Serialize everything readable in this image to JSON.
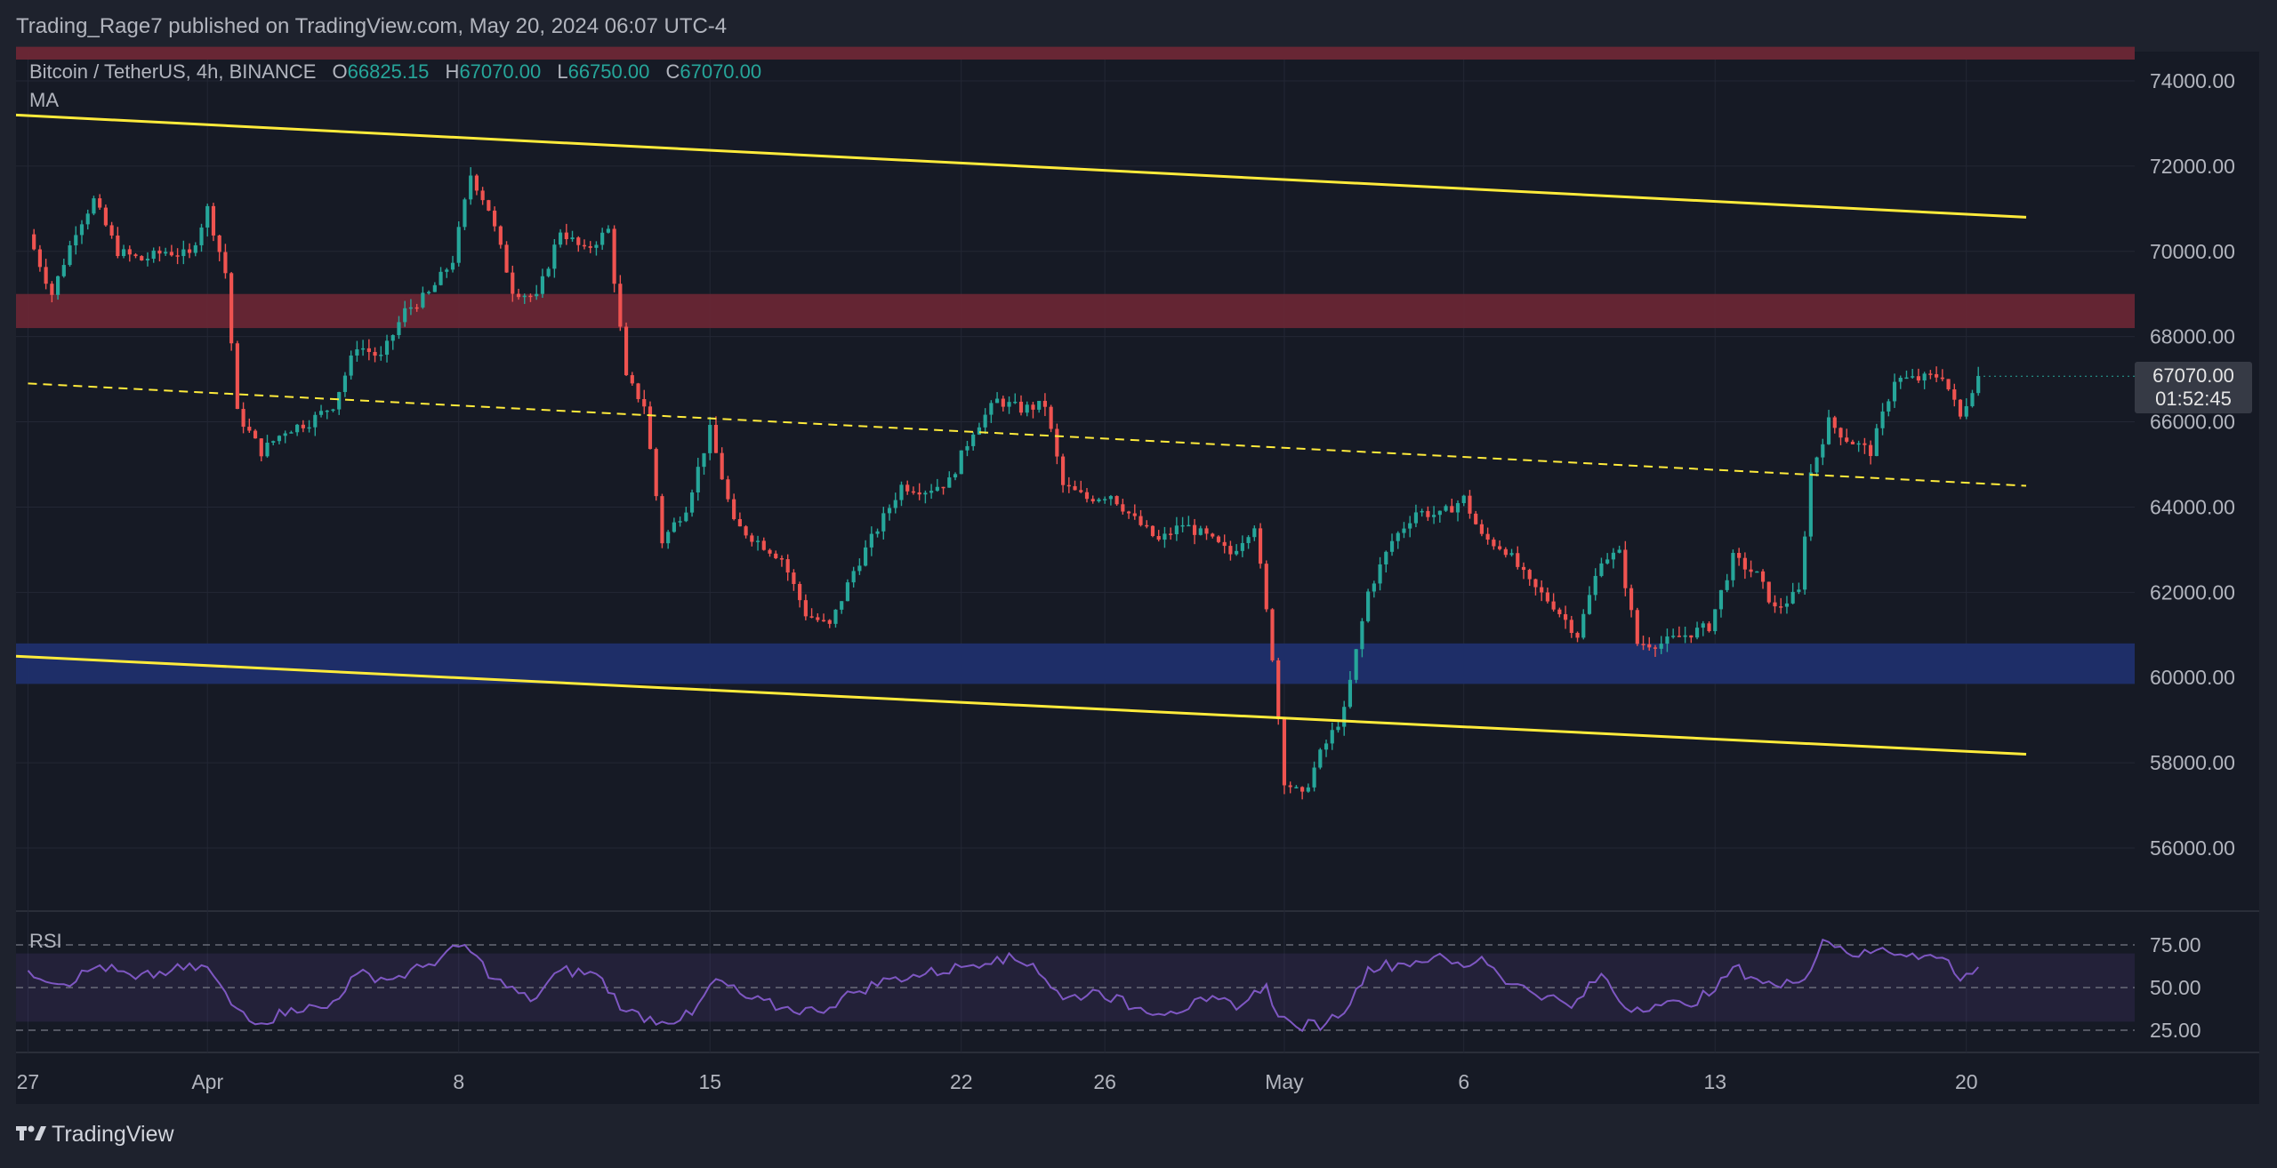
{
  "header": {
    "published": "Trading_Rage7 published on TradingView.com, May 20, 2024 06:07 UTC-4"
  },
  "legend": {
    "symbol": "Bitcoin / TetherUS, 4h, BINANCE",
    "o_label": "O",
    "o_value": "66825.15",
    "h_label": "H",
    "h_value": "67070.00",
    "l_label": "L",
    "l_value": "66750.00",
    "c_label": "C",
    "c_value": "67070.00",
    "ma": "MA"
  },
  "price_tag": {
    "price": "67070.00",
    "countdown": "01:52:45"
  },
  "rsi_panel": {
    "label": "RSI",
    "ticks": [
      "75.00",
      "50.00",
      "25.00"
    ]
  },
  "branding": {
    "text": "TradingView"
  },
  "colors": {
    "background": "#1e222d",
    "pane": "#161a25",
    "up": "#26a69a",
    "down": "#ef5350",
    "channel": "#ffeb3b",
    "resistance_zone": "#6d2735",
    "support_zone": "#1f2f6b",
    "rsi_line": "#7e57c2",
    "text": "#b2b5be"
  },
  "chart_data": {
    "type": "candlestick",
    "symbol": "BTC/USDT",
    "interval": "4h",
    "y_axis": {
      "ticks": [
        "74000.00",
        "72000.00",
        "70000.00",
        "68000.00",
        "66000.00",
        "64000.00",
        "62000.00",
        "60000.00",
        "58000.00",
        "56000.00"
      ],
      "range": [
        54800,
        75200
      ]
    },
    "x_axis": {
      "ticks": [
        {
          "label": "27",
          "date": "2024-03-27"
        },
        {
          "label": "Apr",
          "date": "2024-04-01"
        },
        {
          "label": "8",
          "date": "2024-04-08"
        },
        {
          "label": "15",
          "date": "2024-04-15"
        },
        {
          "label": "22",
          "date": "2024-04-22"
        },
        {
          "label": "26",
          "date": "2024-04-26"
        },
        {
          "label": "May",
          "date": "2024-05-01"
        },
        {
          "label": "6",
          "date": "2024-05-06"
        },
        {
          "label": "13",
          "date": "2024-05-13"
        },
        {
          "label": "20",
          "date": "2024-05-20"
        }
      ]
    },
    "price_path": [
      [
        "2024-03-27T00:00",
        70400
      ],
      [
        "2024-03-27T16:00",
        69000
      ],
      [
        "2024-03-28T08:00",
        70500
      ],
      [
        "2024-03-28T20:00",
        71200
      ],
      [
        "2024-03-29T12:00",
        70000
      ],
      [
        "2024-03-30T04:00",
        69800
      ],
      [
        "2024-03-30T20:00",
        70000
      ],
      [
        "2024-03-31T12:00",
        69900
      ],
      [
        "2024-04-01T00:00",
        71000
      ],
      [
        "2024-04-01T12:00",
        69500
      ],
      [
        "2024-04-01T20:00",
        66200
      ],
      [
        "2024-04-02T12:00",
        65300
      ],
      [
        "2024-04-03T04:00",
        65800
      ],
      [
        "2024-04-03T20:00",
        66000
      ],
      [
        "2024-04-04T12:00",
        66400
      ],
      [
        "2024-04-05T04:00",
        67800
      ],
      [
        "2024-04-05T20:00",
        67500
      ],
      [
        "2024-04-06T12:00",
        68600
      ],
      [
        "2024-04-07T04:00",
        69000
      ],
      [
        "2024-04-07T20:00",
        69800
      ],
      [
        "2024-04-08T08:00",
        71800
      ],
      [
        "2024-04-08T20:00",
        71000
      ],
      [
        "2024-04-09T12:00",
        69100
      ],
      [
        "2024-04-10T04:00",
        68900
      ],
      [
        "2024-04-10T20:00",
        70500
      ],
      [
        "2024-04-11T12:00",
        70000
      ],
      [
        "2024-04-12T04:00",
        70500
      ],
      [
        "2024-04-12T16:00",
        67000
      ],
      [
        "2024-04-13T04:00",
        66400
      ],
      [
        "2024-04-13T16:00",
        63200
      ],
      [
        "2024-04-14T08:00",
        64000
      ],
      [
        "2024-04-15T00:00",
        65800
      ],
      [
        "2024-04-15T16:00",
        63600
      ],
      [
        "2024-04-16T08:00",
        63200
      ],
      [
        "2024-04-17T00:00",
        62800
      ],
      [
        "2024-04-17T16:00",
        61500
      ],
      [
        "2024-04-18T08:00",
        61200
      ],
      [
        "2024-04-19T00:00",
        62500
      ],
      [
        "2024-04-19T16:00",
        63500
      ],
      [
        "2024-04-20T08:00",
        64500
      ],
      [
        "2024-04-21T00:00",
        64400
      ],
      [
        "2024-04-21T16:00",
        64600
      ],
      [
        "2024-04-22T08:00",
        65800
      ],
      [
        "2024-04-23T00:00",
        66500
      ],
      [
        "2024-04-23T16:00",
        66300
      ],
      [
        "2024-04-24T08:00",
        66400
      ],
      [
        "2024-04-24T20:00",
        64500
      ],
      [
        "2024-04-25T12:00",
        64200
      ],
      [
        "2024-04-26T04:00",
        64300
      ],
      [
        "2024-04-26T20:00",
        63700
      ],
      [
        "2024-04-27T12:00",
        63200
      ],
      [
        "2024-04-28T04:00",
        63600
      ],
      [
        "2024-04-28T20:00",
        63300
      ],
      [
        "2024-04-29T12:00",
        62900
      ],
      [
        "2024-04-30T04:00",
        63600
      ],
      [
        "2024-04-30T16:00",
        60500
      ],
      [
        "2024-05-01T00:00",
        57600
      ],
      [
        "2024-05-01T12:00",
        57200
      ],
      [
        "2024-05-02T00:00",
        58200
      ],
      [
        "2024-05-02T16:00",
        59200
      ],
      [
        "2024-05-03T08:00",
        62000
      ],
      [
        "2024-05-04T00:00",
        63200
      ],
      [
        "2024-05-04T16:00",
        63900
      ],
      [
        "2024-05-05T08:00",
        63800
      ],
      [
        "2024-05-06T00:00",
        64200
      ],
      [
        "2024-05-06T12:00",
        63300
      ],
      [
        "2024-05-07T04:00",
        63000
      ],
      [
        "2024-05-07T20:00",
        62200
      ],
      [
        "2024-05-08T12:00",
        61700
      ],
      [
        "2024-05-09T04:00",
        61000
      ],
      [
        "2024-05-09T20:00",
        62800
      ],
      [
        "2024-05-10T08:00",
        62900
      ],
      [
        "2024-05-10T20:00",
        60800
      ],
      [
        "2024-05-11T12:00",
        60800
      ],
      [
        "2024-05-12T04:00",
        61000
      ],
      [
        "2024-05-12T20:00",
        61200
      ],
      [
        "2024-05-13T12:00",
        62800
      ],
      [
        "2024-05-14T04:00",
        62400
      ],
      [
        "2024-05-14T16:00",
        61600
      ],
      [
        "2024-05-15T08:00",
        62000
      ],
      [
        "2024-05-15T16:00",
        64800
      ],
      [
        "2024-05-16T04:00",
        66000
      ],
      [
        "2024-05-16T16:00",
        65600
      ],
      [
        "2024-05-17T08:00",
        65300
      ],
      [
        "2024-05-18T00:00",
        67000
      ],
      [
        "2024-05-18T16:00",
        67000
      ],
      [
        "2024-05-19T08:00",
        67100
      ],
      [
        "2024-05-19T20:00",
        66100
      ],
      [
        "2024-05-20T04:00",
        66800
      ],
      [
        "2024-05-20T08:00",
        67070
      ]
    ],
    "last_bar": {
      "date": "2024-05-20T08:00",
      "open": 66825.15,
      "high": 67070.0,
      "low": 66750.0,
      "close": 67070.0
    },
    "overlays": {
      "channel_upper": {
        "from": [
          "2024-03-26T16:00",
          73200
        ],
        "to": [
          "2024-05-21T16:00",
          70800
        ]
      },
      "channel_lower": {
        "from": [
          "2024-03-26T16:00",
          60500
        ],
        "to": [
          "2024-05-21T16:00",
          58200
        ]
      },
      "channel_mid": {
        "from": [
          "2024-03-27T00:00",
          66900
        ],
        "to": [
          "2024-05-21T16:00",
          64500
        ]
      },
      "resistance_zone": [
        68200,
        69000
      ],
      "support_zone": [
        59850,
        60800
      ],
      "top_zone": [
        74500,
        74800
      ]
    },
    "rsi": {
      "levels": [
        75,
        50,
        25
      ],
      "band": [
        30,
        70
      ],
      "path": [
        [
          "2024-03-27T00:00",
          60
        ],
        [
          "2024-03-28T00:00",
          52
        ],
        [
          "2024-03-29T00:00",
          63
        ],
        [
          "2024-03-30T00:00",
          55
        ],
        [
          "2024-03-31T00:00",
          60
        ],
        [
          "2024-04-01T00:00",
          62
        ],
        [
          "2024-04-01T16:00",
          40
        ],
        [
          "2024-04-02T12:00",
          29
        ],
        [
          "2024-04-03T08:00",
          38
        ],
        [
          "2024-04-04T08:00",
          38
        ],
        [
          "2024-04-05T04:00",
          58
        ],
        [
          "2024-04-06T04:00",
          55
        ],
        [
          "2024-04-07T00:00",
          62
        ],
        [
          "2024-04-08T04:00",
          75
        ],
        [
          "2024-04-09T00:00",
          55
        ],
        [
          "2024-04-10T00:00",
          42
        ],
        [
          "2024-04-10T20:00",
          60
        ],
        [
          "2024-04-11T20:00",
          58
        ],
        [
          "2024-04-12T16:00",
          36
        ],
        [
          "2024-04-13T16:00",
          30
        ],
        [
          "2024-04-14T12:00",
          34
        ],
        [
          "2024-04-15T04:00",
          55
        ],
        [
          "2024-04-16T00:00",
          44
        ],
        [
          "2024-04-17T00:00",
          38
        ],
        [
          "2024-04-18T00:00",
          36
        ],
        [
          "2024-04-19T00:00",
          47
        ],
        [
          "2024-04-20T00:00",
          55
        ],
        [
          "2024-04-21T00:00",
          58
        ],
        [
          "2024-04-22T00:00",
          62
        ],
        [
          "2024-04-23T00:00",
          68
        ],
        [
          "2024-04-24T00:00",
          64
        ],
        [
          "2024-04-24T20:00",
          43
        ],
        [
          "2024-04-25T20:00",
          48
        ],
        [
          "2024-04-26T20:00",
          38
        ],
        [
          "2024-04-27T20:00",
          36
        ],
        [
          "2024-04-28T20:00",
          42
        ],
        [
          "2024-04-29T20:00",
          40
        ],
        [
          "2024-04-30T12:00",
          52
        ],
        [
          "2024-04-30T20:00",
          33
        ],
        [
          "2024-05-01T08:00",
          27
        ],
        [
          "2024-05-02T04:00",
          29
        ],
        [
          "2024-05-02T20:00",
          40
        ],
        [
          "2024-05-03T08:00",
          62
        ],
        [
          "2024-05-04T08:00",
          64
        ],
        [
          "2024-05-05T04:00",
          68
        ],
        [
          "2024-05-06T00:00",
          62
        ],
        [
          "2024-05-06T12:00",
          68
        ],
        [
          "2024-05-07T08:00",
          52
        ],
        [
          "2024-05-08T08:00",
          45
        ],
        [
          "2024-05-09T00:00",
          38
        ],
        [
          "2024-05-09T20:00",
          58
        ],
        [
          "2024-05-10T12:00",
          38
        ],
        [
          "2024-05-11T08:00",
          40
        ],
        [
          "2024-05-12T04:00",
          40
        ],
        [
          "2024-05-13T00:00",
          48
        ],
        [
          "2024-05-13T12:00",
          62
        ],
        [
          "2024-05-14T04:00",
          55
        ],
        [
          "2024-05-14T20:00",
          50
        ],
        [
          "2024-05-15T16:00",
          60
        ],
        [
          "2024-05-16T00:00",
          78
        ],
        [
          "2024-05-16T12:00",
          74
        ],
        [
          "2024-05-17T00:00",
          68
        ],
        [
          "2024-05-17T12:00",
          72
        ],
        [
          "2024-05-18T12:00",
          70
        ],
        [
          "2024-05-19T12:00",
          66
        ],
        [
          "2024-05-19T20:00",
          54
        ],
        [
          "2024-05-20T04:00",
          58
        ],
        [
          "2024-05-20T08:00",
          62
        ]
      ]
    }
  }
}
